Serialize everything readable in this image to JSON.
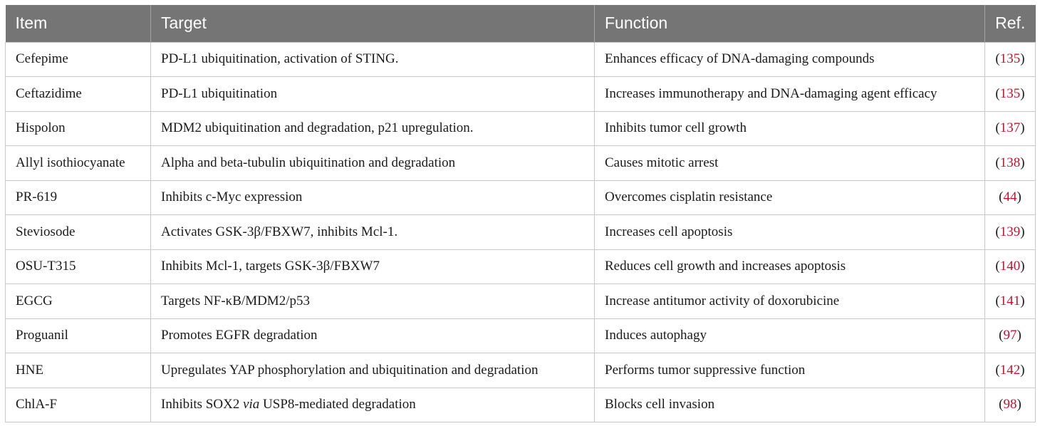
{
  "header": {
    "item": "Item",
    "target": "Target",
    "function": "Function",
    "ref": "Ref."
  },
  "rows": [
    {
      "item": "Cefepime",
      "target": "PD-L1 ubiquitination, activation of STING.",
      "function": "Enhances efficacy of DNA-damaging compounds",
      "ref": "135"
    },
    {
      "item": "Ceftazidime",
      "target": "PD-L1 ubiquitination",
      "function": "Increases immunotherapy and DNA-damaging agent efficacy",
      "ref": "135"
    },
    {
      "item": "Hispolon",
      "target": "MDM2 ubiquitination and degradation, p21 upregulation.",
      "function": "Inhibits tumor cell growth",
      "ref": "137"
    },
    {
      "item": "Allyl isothiocyanate",
      "target": "Alpha and beta-tubulin ubiquitination and degradation",
      "function": "Causes mitotic arrest",
      "ref": "138"
    },
    {
      "item": "PR-619",
      "target": "Inhibits c-Myc expression",
      "function": "Overcomes cisplatin resistance",
      "ref": "44"
    },
    {
      "item": "Steviosode",
      "target": "Activates GSK-3β/FBXW7, inhibits Mcl-1.",
      "function": "Increases cell apoptosis",
      "ref": "139"
    },
    {
      "item": "OSU-T315",
      "target": "Inhibits Mcl-1, targets GSK-3β/FBXW7",
      "function": "Reduces cell growth and increases apoptosis",
      "ref": "140"
    },
    {
      "item": "EGCG",
      "target": "Targets NF-κB/MDM2/p53",
      "function": "Increase antitumor activity of doxorubicine",
      "ref": "141"
    },
    {
      "item": "Proguanil",
      "target": "Promotes EGFR degradation",
      "function": "Induces autophagy",
      "ref": "97"
    },
    {
      "item": "HNE",
      "target": "Upregulates YAP phosphorylation and ubiquitination and degradation",
      "function": "Performs tumor suppressive function",
      "ref": "142"
    },
    {
      "item": "ChlA-F",
      "target_pre": "Inhibits SOX2 ",
      "target_em": "via",
      "target_post": " USP8-mediated degradation",
      "function": "Blocks cell invasion",
      "ref": "98"
    }
  ],
  "colors": {
    "header_bg": "#757575",
    "ref_link": "#c8102e",
    "grid": "#c8c8c8"
  }
}
